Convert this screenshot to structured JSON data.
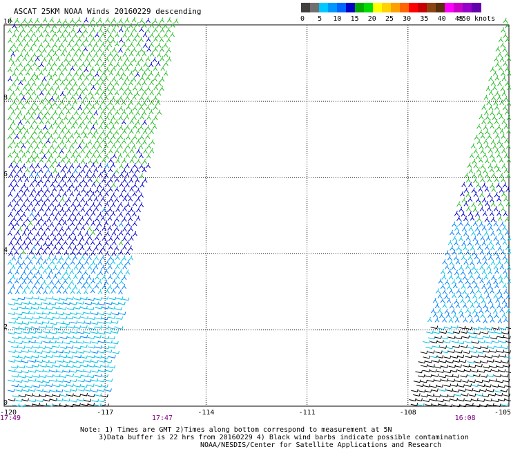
{
  "title": "ASCAT 25KM NOAA Winds 20160229 descending",
  "legend": {
    "colors": [
      "#404040",
      "#707070",
      "#00c8ff",
      "#0096ff",
      "#0064ff",
      "#0000c8",
      "#00aa00",
      "#00dc00",
      "#ffff00",
      "#ffd200",
      "#ffa000",
      "#ff6400",
      "#ff0000",
      "#c80000",
      "#8b4513",
      "#5a2d0c",
      "#ff00ff",
      "#c800c8",
      "#9600c8",
      "#6400aa"
    ],
    "labels": [
      {
        "text": "0",
        "at": 0
      },
      {
        "text": "5",
        "at": 5
      },
      {
        "text": "10",
        "at": 10
      },
      {
        "text": "15",
        "at": 15
      },
      {
        "text": "20",
        "at": 20
      },
      {
        "text": "25",
        "at": 25
      },
      {
        "text": "30",
        "at": 30
      },
      {
        "text": "35",
        "at": 35
      },
      {
        "text": "40",
        "at": 40
      },
      {
        "text": "45",
        "at": 45
      },
      {
        "text": ">50 knots",
        "at": 50
      }
    ]
  },
  "axes": {
    "lat_range": [
      0,
      10
    ],
    "lon_range": [
      -120,
      -105
    ],
    "lat_labels": [
      "0",
      "2",
      "4",
      "6",
      "8",
      "10"
    ],
    "lon_labels": [
      {
        "lon": -120,
        "text": "-120"
      },
      {
        "lon": -117,
        "text": "-117"
      },
      {
        "lon": -114,
        "text": "-114"
      },
      {
        "lon": -111,
        "text": "-111"
      },
      {
        "lon": -108,
        "text": "-108"
      },
      {
        "lon": -105,
        "text": "-105"
      }
    ],
    "gridlines": "dotted"
  },
  "swath_times": [
    {
      "lon": -120,
      "text": "17:49"
    },
    {
      "lon": -115.3,
      "text": "17:47"
    },
    {
      "lon": -106.3,
      "text": "16:08"
    }
  ],
  "wind_colors": {
    "green": "#22bb22",
    "blue": "#0000cc",
    "medium_blue": "#0080ff",
    "cyan": "#00c0e8",
    "black": "#000000"
  },
  "notes": [
    "Note: 1) Times are GMT 2)Times along bottom correspond to measurement at 5N",
    "3)Data buffer is 22 hrs from 20160229 4) Black wind barbs indicate possible contamination",
    "NOAA/NESDIS/Center for Satellite Applications and Research"
  ]
}
